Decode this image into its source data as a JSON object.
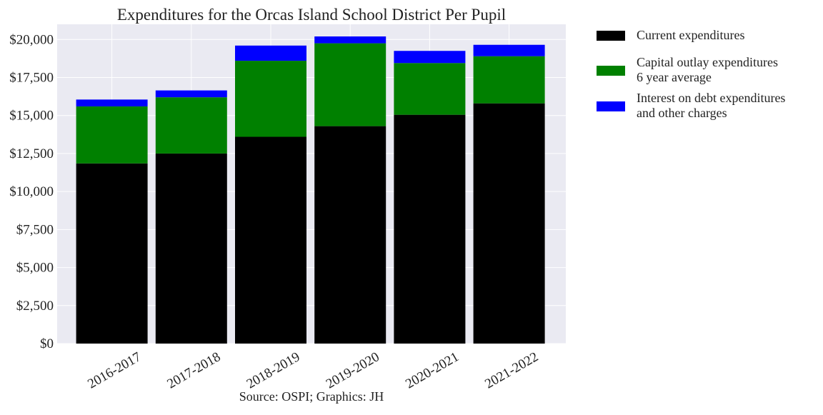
{
  "chart_data": {
    "type": "bar",
    "stacked": true,
    "title": "Expenditures for the Orcas Island School District Per Pupil",
    "xlabel": "Source: OSPI; Graphics: JH",
    "ylabel": "",
    "categories": [
      "2016-2017",
      "2017-2018",
      "2018-2019",
      "2019-2020",
      "2020-2021",
      "2021-2022"
    ],
    "ylim": [
      0,
      21000
    ],
    "yticks": [
      0,
      2500,
      5000,
      7500,
      10000,
      12500,
      15000,
      17500,
      20000
    ],
    "ytick_labels": [
      "$0",
      "$2,500",
      "$5,000",
      "$7,500",
      "$10,000",
      "$12,500",
      "$15,000",
      "$17,500",
      "$20,000"
    ],
    "grid": true,
    "legend_position": "outside-top-right",
    "series": [
      {
        "name": "Current expenditures",
        "color": "#000000",
        "values": [
          11850,
          12500,
          13600,
          14300,
          15050,
          15800
        ]
      },
      {
        "name": "Capital outlay expenditures\n6 year average",
        "color": "#008000",
        "values": [
          3750,
          3700,
          5000,
          5450,
          3400,
          3100
        ]
      },
      {
        "name": "Interest on debt expenditures\nand other charges",
        "color": "#0000ff",
        "values": [
          450,
          450,
          1000,
          450,
          800,
          750
        ]
      }
    ]
  }
}
